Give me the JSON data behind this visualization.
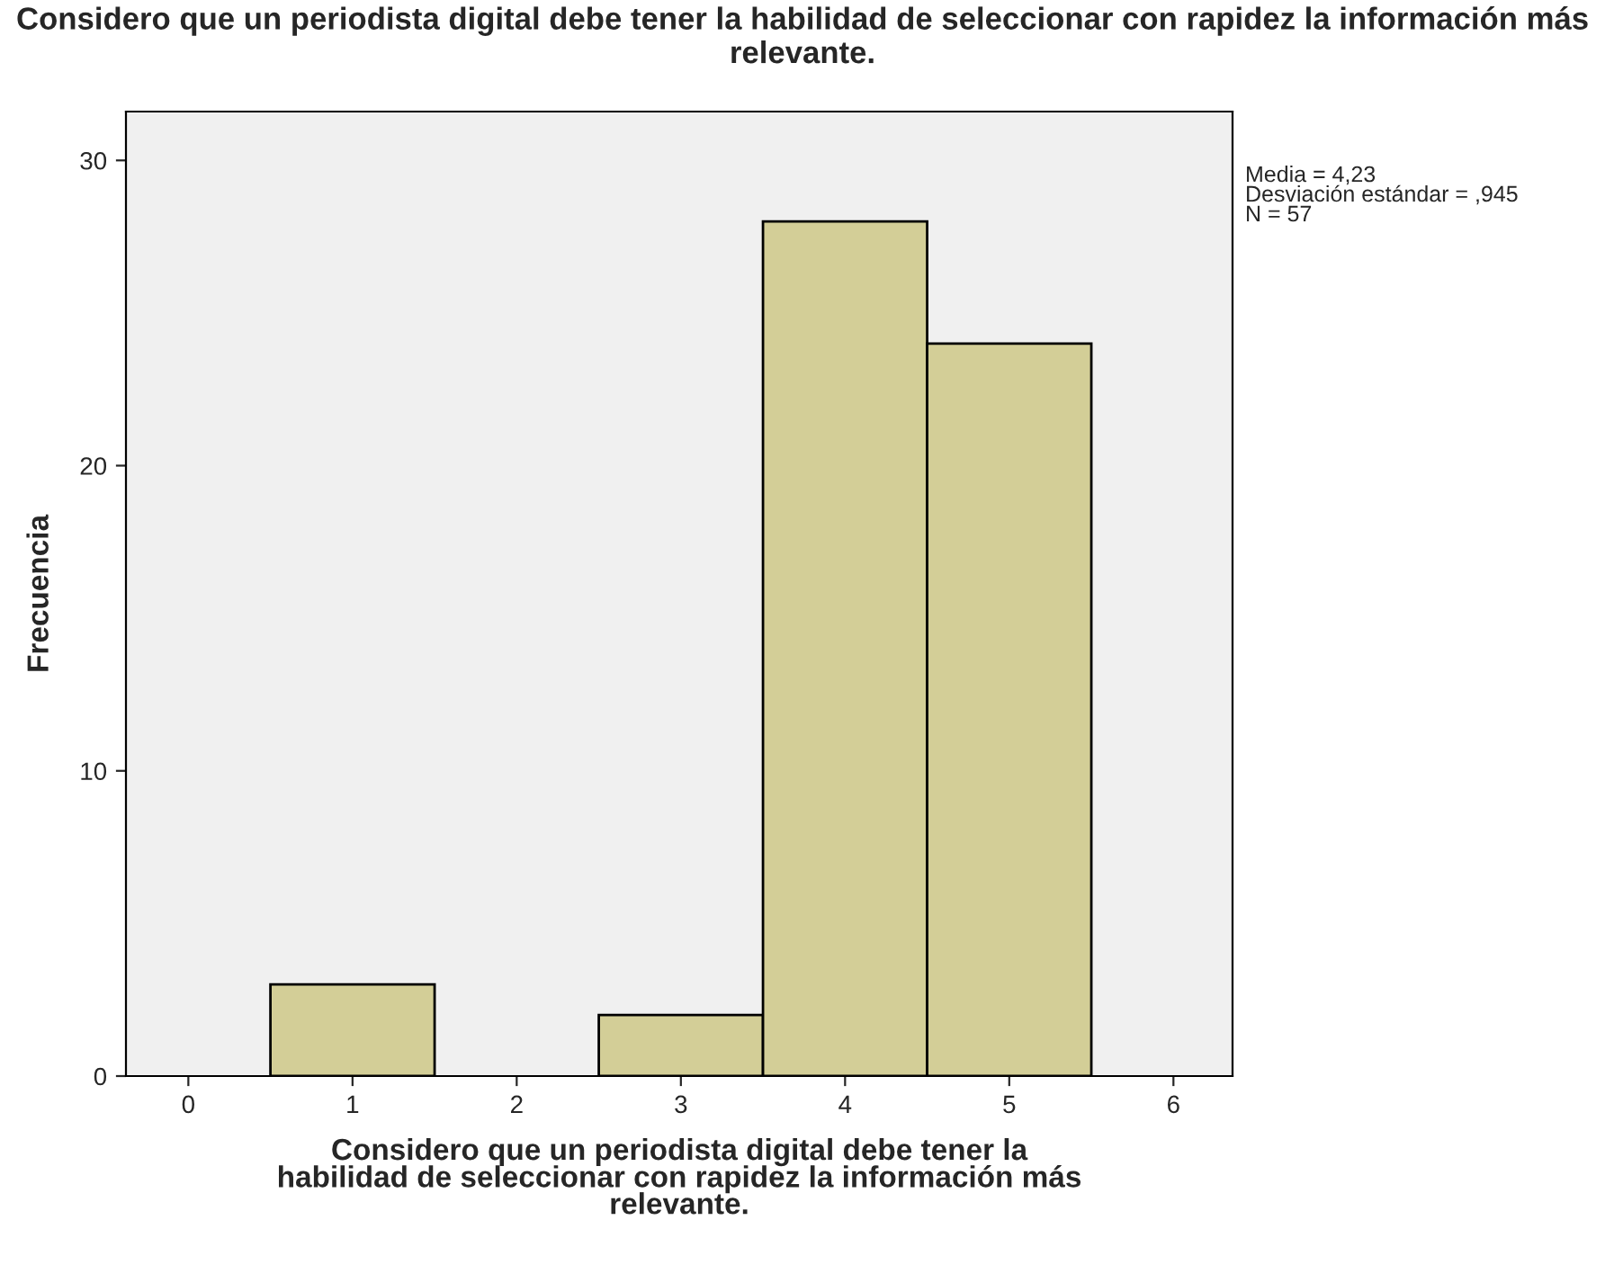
{
  "chart_data": {
    "type": "histogram",
    "title": "Considero que un periodista digital debe tener la habilidad de seleccionar con rapidez la información más relevante.",
    "xlabel": "Considero que un periodista digital debe tener la\nhabilidad de seleccionar con rapidez la información más\nrelevante.",
    "ylabel": "Frecuencia",
    "bins": [
      0.5,
      1.5,
      2.5,
      3.5,
      4.5,
      5.5
    ],
    "values": [
      3,
      0,
      2,
      28,
      24
    ],
    "color": "#d3ce97",
    "xlim": [
      -0.38,
      6.36
    ],
    "xticks": [
      0,
      1,
      2,
      3,
      4,
      5,
      6
    ],
    "ylim": [
      0,
      31.6
    ],
    "yticks": [
      0,
      10,
      20,
      30
    ],
    "grid": false,
    "legend": false,
    "annotations": [
      "Media = 4,23",
      "Desviación estándar = ,945",
      "N = 57"
    ]
  }
}
